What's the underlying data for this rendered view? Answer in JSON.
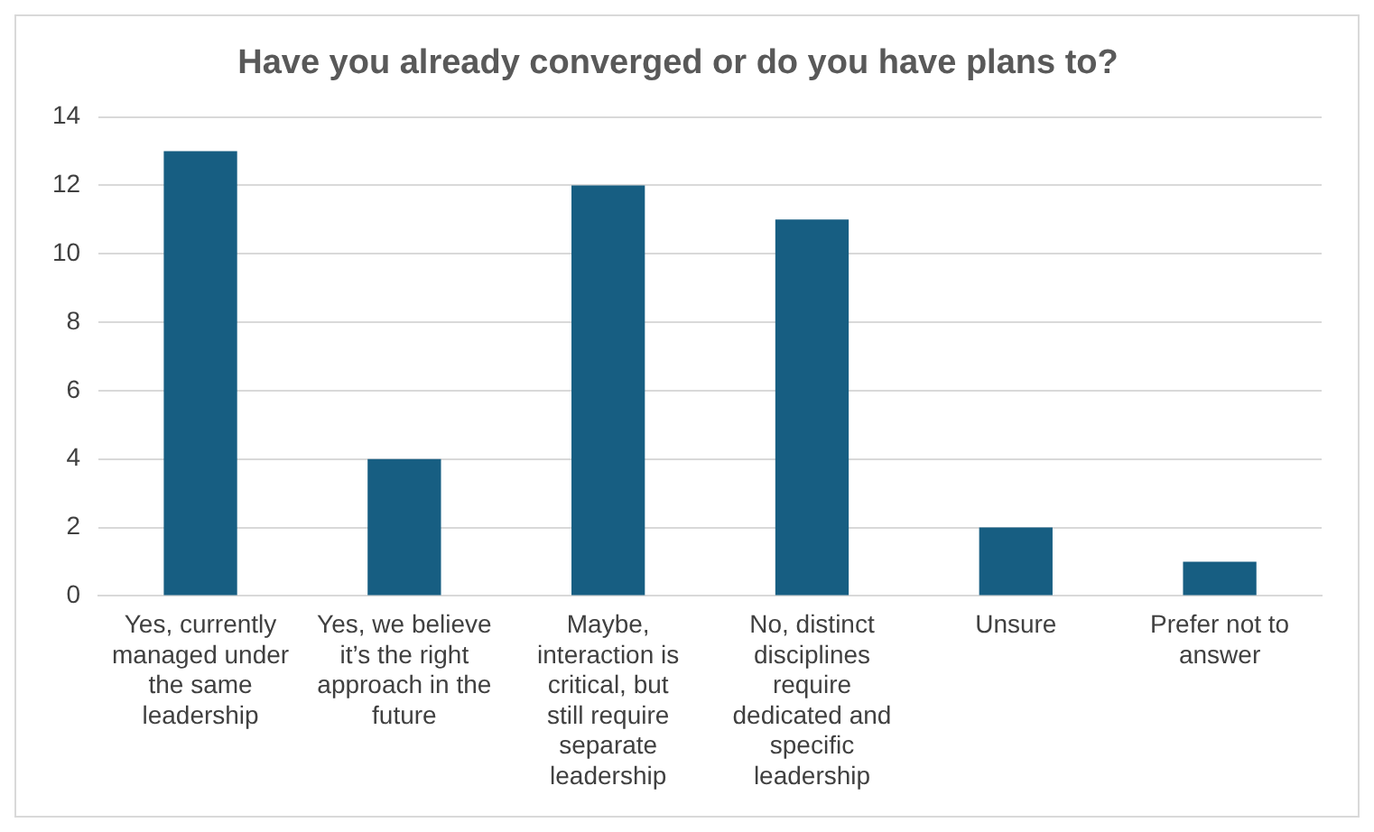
{
  "chart_data": {
    "type": "bar",
    "title": "Have you already converged or do you have plans to?",
    "categories": [
      "Yes, currently managed under the same leadership",
      "Yes, we believe it’s the right approach in the future",
      "Maybe, interaction is critical, but still require separate leadership",
      "No, distinct disciplines require dedicated and specific leadership",
      "Unsure",
      "Prefer not to answer"
    ],
    "values": [
      13,
      4,
      12,
      11,
      2,
      1
    ],
    "color": "#175e82",
    "ylim": [
      0,
      14
    ],
    "yticks": [
      0,
      2,
      4,
      6,
      8,
      10,
      12,
      14
    ],
    "grid": "y",
    "legend": false
  }
}
